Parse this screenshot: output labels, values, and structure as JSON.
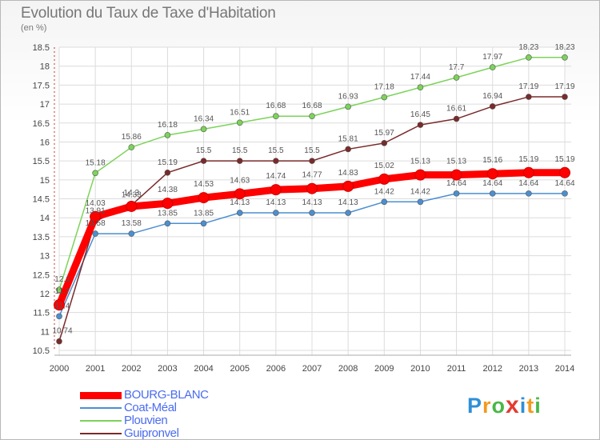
{
  "title": "Evolution du Taux de Taxe d'Habitation",
  "subtitle": "(en %)",
  "brand": {
    "letters": [
      "P",
      "r",
      "o",
      "x",
      "i",
      "t",
      "i"
    ],
    "colors": [
      "#2f8fd8",
      "#f29a1f",
      "#49b848",
      "#e53b30",
      "#2f8fd8",
      "#f29a1f",
      "#49b848"
    ]
  },
  "chart_data": {
    "type": "line",
    "title": "Evolution du Taux de Taxe d'Habitation",
    "ylabel": "(en %)",
    "xlabel": "",
    "x": [
      "2000",
      "2001",
      "2002",
      "2003",
      "2004",
      "2005",
      "2006",
      "2007",
      "2008",
      "2009",
      "2010",
      "2011",
      "2012",
      "2013",
      "2014"
    ],
    "ylim": [
      10.5,
      18.5
    ],
    "yticks": [
      "10.5",
      "11",
      "11.5",
      "12",
      "12.5",
      "13",
      "13.5",
      "14",
      "14.5",
      "15",
      "15.5",
      "16",
      "16.5",
      "17",
      "17.5",
      "18",
      "18.5"
    ],
    "grid": true,
    "legend_position": "bottom-left",
    "series": [
      {
        "name": "BOURG-BLANC",
        "color": "#ff0000",
        "values": [
          11.7,
          14.03,
          14.3,
          14.38,
          14.53,
          14.63,
          14.74,
          14.77,
          14.83,
          15.02,
          15.13,
          15.13,
          15.16,
          15.19,
          15.19
        ],
        "labels": [
          "11.7",
          "14.03",
          "14.3",
          "14.38",
          "14.53",
          "14.63",
          "14.74",
          "14.77",
          "14.83",
          "15.02",
          "15.13",
          "15.13",
          "15.16",
          "15.19",
          "15.19"
        ]
      },
      {
        "name": "Coat-Méal",
        "color": "#4b8fd0",
        "values": [
          11.4,
          13.58,
          13.58,
          13.85,
          13.85,
          14.13,
          14.13,
          14.13,
          14.13,
          14.42,
          14.42,
          14.64,
          14.64,
          14.64,
          14.64
        ],
        "labels": [
          "11.4",
          "13.58",
          "13.58",
          "13.85",
          "13.85",
          "14.13",
          "14.13",
          "14.13",
          "14.13",
          "14.42",
          "14.42",
          "14.64",
          "14.64",
          "14.64",
          "14.64"
        ]
      },
      {
        "name": "Plouvien",
        "color": "#7cd35a",
        "values": [
          12.1,
          15.18,
          15.86,
          16.18,
          16.34,
          16.51,
          16.68,
          16.68,
          16.93,
          17.18,
          17.44,
          17.7,
          17.97,
          18.23,
          18.23
        ],
        "labels": [
          "12.1",
          "15.18",
          "15.86",
          "16.18",
          "16.34",
          "16.51",
          "16.68",
          "16.68",
          "16.93",
          "17.18",
          "17.44",
          "17.7",
          "17.97",
          "18.23",
          "18.23"
        ]
      },
      {
        "name": "Guipronvel",
        "color": "#7a2a2a",
        "values": [
          10.74,
          13.91,
          14.33,
          15.19,
          15.5,
          15.5,
          15.5,
          15.5,
          15.81,
          15.97,
          16.45,
          16.61,
          16.94,
          17.19,
          17.19
        ],
        "labels": [
          "10.74",
          "13.91",
          "14.33",
          "15.19",
          "15.5",
          "15.5",
          "15.5",
          "15.5",
          "15.81",
          "15.97",
          "16.45",
          "16.61",
          "16.94",
          "17.19",
          "17.19"
        ]
      }
    ]
  }
}
